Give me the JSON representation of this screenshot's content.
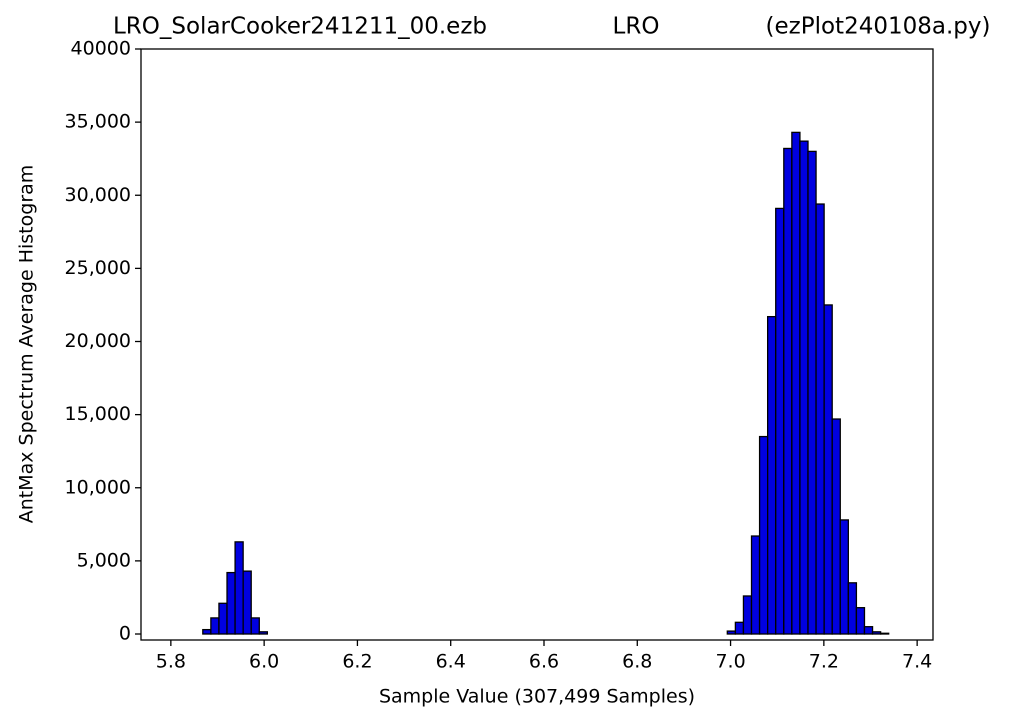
{
  "chart_data": {
    "type": "histogram",
    "title": [
      "LRO_SolarCooker241211_00.ezb",
      "LRO",
      "(ezPlot240108a.py)"
    ],
    "xlabel": "Sample Value (307,499 Samples)",
    "ylabel": "AntMax Spectrum Average Histogram",
    "color": "#0000e0",
    "edgecolor": "#000000",
    "bins": [
      5.782,
      5.7993,
      5.8166,
      5.8339,
      5.8512,
      5.8685,
      5.8858,
      5.9031,
      5.9204,
      5.9377,
      5.955,
      5.9723,
      5.9896,
      6.0069,
      6.0242,
      6.0415,
      6.0588,
      6.0761,
      6.0934,
      6.1107,
      6.128,
      6.1453,
      6.1626,
      6.1799,
      6.1972,
      6.2145,
      6.2318,
      6.2491,
      6.2664,
      6.2837,
      6.301,
      6.3183,
      6.3356,
      6.3529,
      6.3702,
      6.3875,
      6.4048,
      6.4221,
      6.4394,
      6.4567,
      6.474,
      6.4913,
      6.5086,
      6.5259,
      6.5432,
      6.5605,
      6.5778,
      6.5951,
      6.6124,
      6.6297,
      6.647,
      6.6643,
      6.6816,
      6.6989,
      6.7162,
      6.7335,
      6.7508,
      6.7681,
      6.7854,
      6.8027,
      6.82,
      6.8373,
      6.8546,
      6.8719,
      6.8892,
      6.9065,
      6.9238,
      6.9411,
      6.9584,
      6.9757,
      6.993,
      7.0103,
      7.0276,
      7.0449,
      7.0622,
      7.0795,
      7.0968,
      7.1141,
      7.1314,
      7.1487,
      7.166,
      7.1833,
      7.2006,
      7.2179,
      7.2352,
      7.2525,
      7.2698,
      7.2871,
      7.3044,
      7.3217,
      7.339,
      7.3563
    ],
    "values": [
      0,
      0,
      0,
      0,
      0,
      300,
      1100,
      2100,
      4200,
      6300,
      4300,
      1100,
      150,
      0,
      0,
      0,
      0,
      0,
      0,
      0,
      0,
      0,
      0,
      0,
      0,
      0,
      0,
      0,
      0,
      0,
      0,
      0,
      0,
      0,
      0,
      0,
      0,
      0,
      0,
      0,
      0,
      0,
      0,
      0,
      0,
      0,
      0,
      0,
      0,
      0,
      0,
      0,
      0,
      0,
      0,
      0,
      0,
      0,
      0,
      0,
      0,
      0,
      0,
      0,
      0,
      0,
      0,
      0,
      0,
      0,
      200,
      800,
      2600,
      6700,
      13500,
      21700,
      29100,
      33200,
      34300,
      33700,
      33000,
      29400,
      22500,
      14700,
      7800,
      3500,
      1800,
      500,
      150,
      50,
      0
    ],
    "xlim": [
      5.736,
      7.434
    ],
    "xticks": [
      5.8,
      {
        "value": 6,
        "label": "6.0"
      },
      6.2,
      6.4,
      6.6,
      6.8,
      {
        "value": 7,
        "label": "7.0"
      },
      7.2,
      7.4
    ],
    "ylim": [
      -410,
      40000
    ],
    "yticks": [
      0,
      {
        "value": 5000,
        "label": "5,000"
      },
      {
        "value": 10000,
        "label": "10,000"
      },
      {
        "value": 15000,
        "label": "15,000"
      },
      {
        "value": 20000,
        "label": "20,000"
      },
      {
        "value": 25000,
        "label": "25,000"
      },
      {
        "value": 30000,
        "label": "30,000"
      },
      {
        "value": 35000,
        "label": "35,000"
      },
      40000
    ]
  }
}
